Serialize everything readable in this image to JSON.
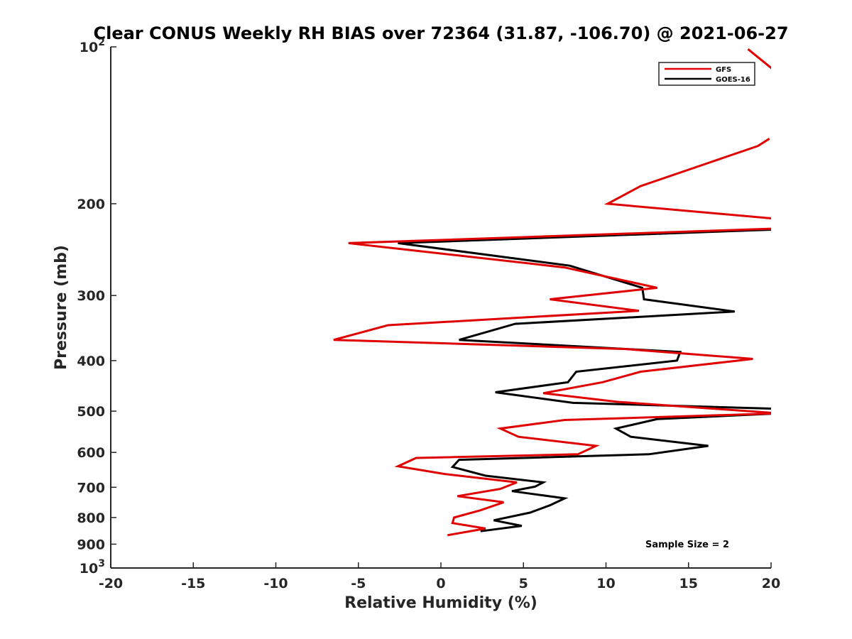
{
  "chart_data": {
    "type": "line",
    "title": "Clear CONUS Weekly RH BIAS over 72364 (31.87, -106.70) @ 2021-06-27",
    "xlabel": "Relative Humidity (%)",
    "ylabel": "Pressure (mb)",
    "xlim": [
      -20,
      20
    ],
    "ylim": [
      100,
      1000
    ],
    "yscale": "log",
    "y_reversed": true,
    "x_ticks": [
      -20,
      -15,
      -10,
      -5,
      0,
      5,
      10,
      15,
      20
    ],
    "x_tick_labels": [
      "-20",
      "-15",
      "-10",
      "-5",
      "0",
      "5",
      "10",
      "15",
      "20"
    ],
    "y_ticks": [
      100,
      200,
      300,
      400,
      500,
      600,
      700,
      800,
      900,
      1000
    ],
    "y_tick_labels": [
      {
        "base": "10",
        "exp": "2"
      },
      {
        "base": "200",
        "exp": ""
      },
      {
        "base": "300",
        "exp": ""
      },
      {
        "base": "400",
        "exp": ""
      },
      {
        "base": "500",
        "exp": ""
      },
      {
        "base": "600",
        "exp": ""
      },
      {
        "base": "700",
        "exp": ""
      },
      {
        "base": "800",
        "exp": ""
      },
      {
        "base": "900",
        "exp": ""
      },
      {
        "base": "10",
        "exp": "3"
      }
    ],
    "grid": false,
    "legend_position": "top-right",
    "series": [
      {
        "name": "GFS",
        "color": "#e00000",
        "points": [
          [
            19.9,
            150
          ],
          [
            19.2,
            155
          ],
          [
            16.2,
            167
          ],
          [
            12.1,
            185
          ],
          [
            10.1,
            200
          ],
          [
            20.5,
            214
          ],
          [
            20.5,
            223
          ],
          [
            -5.6,
            238
          ],
          [
            7.5,
            265
          ],
          [
            13.1,
            290
          ],
          [
            6.6,
            305
          ],
          [
            12.0,
            321
          ],
          [
            -3.2,
            342
          ],
          [
            -6.5,
            365
          ],
          [
            11.2,
            380
          ],
          [
            18.9,
            397
          ],
          [
            12.1,
            420
          ],
          [
            9.8,
            440
          ],
          [
            6.2,
            462
          ],
          [
            10.7,
            480
          ],
          [
            20.5,
            505
          ],
          [
            7.5,
            520
          ],
          [
            3.6,
            540
          ],
          [
            4.7,
            560
          ],
          [
            9.4,
            583
          ],
          [
            8.3,
            605
          ],
          [
            -1.5,
            615
          ],
          [
            -2.6,
            638
          ],
          [
            0.2,
            660
          ],
          [
            4.6,
            685
          ],
          [
            3.6,
            705
          ],
          [
            1.0,
            728
          ],
          [
            3.8,
            748
          ],
          [
            2.4,
            775
          ],
          [
            0.8,
            800
          ],
          [
            0.7,
            820
          ],
          [
            2.7,
            840
          ],
          [
            0.4,
            865
          ]
        ]
      },
      {
        "name": "GOES-16",
        "color": "#000000",
        "points": [
          [
            20.5,
            224
          ],
          [
            -2.6,
            238
          ],
          [
            7.8,
            263
          ],
          [
            12.2,
            290
          ],
          [
            12.3,
            305
          ],
          [
            17.8,
            322
          ],
          [
            4.5,
            340
          ],
          [
            1.1,
            365
          ],
          [
            14.5,
            385
          ],
          [
            14.3,
            400
          ],
          [
            8.2,
            420
          ],
          [
            7.7,
            440
          ],
          [
            3.3,
            460
          ],
          [
            8.0,
            482
          ],
          [
            20.5,
            495
          ],
          [
            20.5,
            505
          ],
          [
            13.1,
            518
          ],
          [
            10.6,
            540
          ],
          [
            11.5,
            560
          ],
          [
            16.2,
            583
          ],
          [
            12.6,
            605
          ],
          [
            1.1,
            620
          ],
          [
            0.7,
            640
          ],
          [
            2.7,
            665
          ],
          [
            6.2,
            685
          ],
          [
            5.7,
            698
          ],
          [
            4.3,
            712
          ],
          [
            7.5,
            735
          ],
          [
            6.6,
            758
          ],
          [
            5.4,
            783
          ],
          [
            3.2,
            810
          ],
          [
            4.9,
            830
          ],
          [
            2.4,
            850
          ]
        ]
      }
    ],
    "upper_fragment": {
      "series": "GFS",
      "points": [
        [
          18.6,
          101
        ],
        [
          20.5,
          113
        ]
      ]
    },
    "annotation": "Sample Size = 2"
  }
}
